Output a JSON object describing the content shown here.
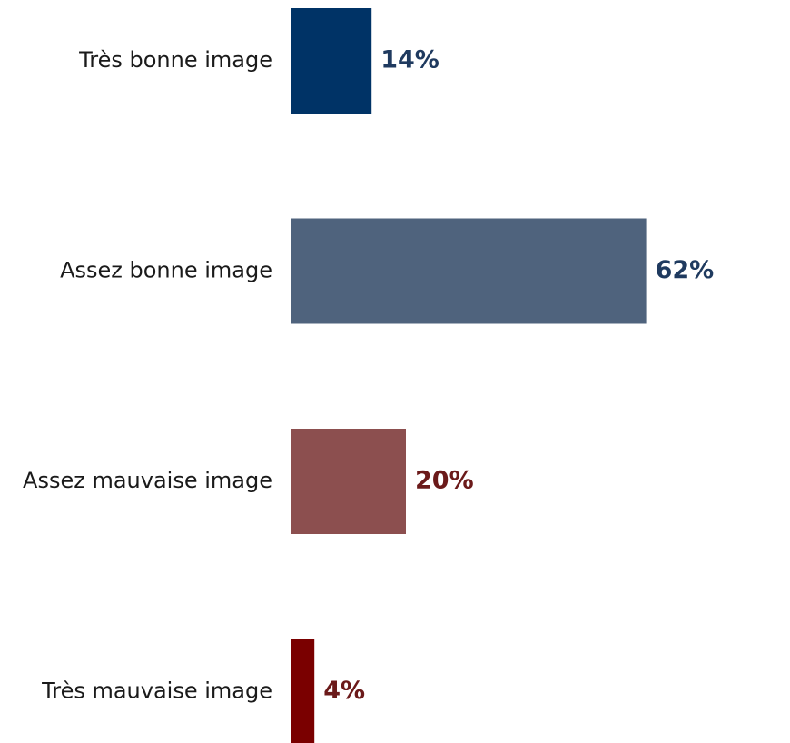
{
  "chart_data": {
    "type": "bar",
    "orientation": "horizontal",
    "categories": [
      "Très bonne image",
      "Assez bonne image",
      "Assez mauvaise image",
      "Très mauvaise image"
    ],
    "values": [
      14,
      62,
      20,
      4
    ],
    "value_labels": [
      "14%",
      "62%",
      "20%",
      "4%"
    ],
    "bar_colors": [
      "#003366",
      "#4F637D",
      "#8C4F4F",
      "#7A0000"
    ],
    "label_colors": [
      "#1F3A5F",
      "#1F3A5F",
      "#6B1A1A",
      "#6B1A1A"
    ],
    "title": "",
    "xlabel": "",
    "ylabel": "",
    "xlim": [
      0,
      100
    ],
    "grid": false,
    "legend": "none"
  }
}
